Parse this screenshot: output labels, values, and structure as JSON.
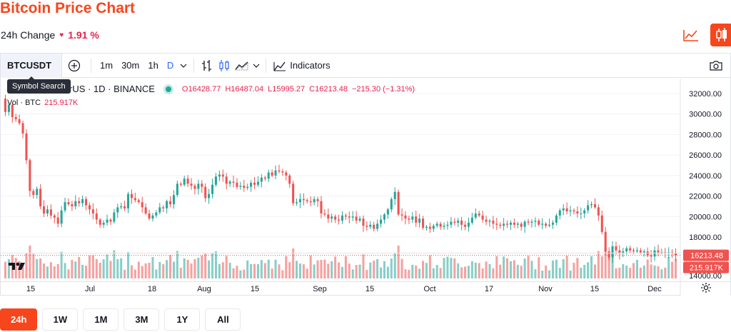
{
  "header": {
    "title": "Bitcoin Price Chart",
    "change_label": "24h Change",
    "change_value": "1.91 %"
  },
  "toolbar": {
    "symbol": "BTCUSDT",
    "intervals": [
      "1m",
      "30m",
      "1h",
      "D"
    ],
    "active_interval": "D",
    "indicators_label": "Indicators",
    "tooltip": "Symbol Search"
  },
  "legend": {
    "symbol_text": "rUS · 1D · BINANCE",
    "open": "O16428.77",
    "high": "H16487.04",
    "low": "L15995.27",
    "close": "C16213.48",
    "change": "−215.30 (−1.31%)",
    "vol_label": "Vol · BTC",
    "vol_value": "215.917K"
  },
  "price_axis": {
    "labels": [
      "32000.00",
      "30000.00",
      "28000.00",
      "26000.00",
      "24000.00",
      "22000.00",
      "20000.00",
      "18000.00",
      "14000.00"
    ],
    "last_price": "16213.48",
    "last_volume": "215.917K"
  },
  "time_axis": {
    "labels": [
      "15",
      "Jul",
      "18",
      "Aug",
      "15",
      "Sep",
      "15",
      "Oct",
      "17",
      "Nov",
      "15",
      "Dec"
    ]
  },
  "timeframes": [
    "24h",
    "1W",
    "1M",
    "3M",
    "1Y",
    "All"
  ],
  "active_timeframe": "24h",
  "colors": {
    "accent": "#f7461c",
    "up": "#26a69a",
    "down": "#ef5350",
    "neg_text": "#e8224f"
  },
  "chart_data": {
    "type": "candlestick",
    "interval": "1D",
    "ylim": [
      14000,
      32500
    ],
    "close": [
      30200,
      30900,
      29700,
      29500,
      29100,
      28100,
      25500,
      22500,
      22100,
      22700,
      21000,
      20300,
      20700,
      20100,
      19900,
      19300,
      20600,
      21400,
      21200,
      21000,
      21500,
      21300,
      21700,
      21100,
      20700,
      20300,
      19700,
      19200,
      19400,
      19700,
      19500,
      20400,
      20900,
      21000,
      20800,
      22200,
      21800,
      21600,
      21400,
      20900,
      20300,
      19800,
      20100,
      20400,
      20900,
      20800,
      21500,
      21200,
      22100,
      23200,
      23100,
      23700,
      23200,
      23000,
      22700,
      23200,
      22900,
      21800,
      22200,
      23100,
      23900,
      24100,
      23900,
      23200,
      23400,
      23300,
      22900,
      23000,
      22800,
      22900,
      23300,
      23100,
      23400,
      23800,
      23700,
      24300,
      24000,
      24500,
      24400,
      24300,
      24000,
      23200,
      21300,
      21400,
      21700,
      21600,
      21500,
      21400,
      21700,
      21500,
      20300,
      20200,
      19800,
      20000,
      19700,
      19600,
      20100,
      20000,
      19900,
      20000,
      19600,
      19800,
      19100,
      19000,
      19200,
      18800,
      19300,
      19700,
      20200,
      20700,
      21700,
      22400,
      20200,
      20100,
      19800,
      19700,
      20000,
      19400,
      19800,
      18900,
      19000,
      18800,
      19100,
      19300,
      19000,
      19100,
      19200,
      19500,
      19400,
      19600,
      19200,
      19000,
      19400,
      19900,
      20300,
      20100,
      19700,
      19500,
      19600,
      19300,
      19200,
      19100,
      19300,
      19200,
      19400,
      19200,
      19300,
      19000,
      19500,
      19400,
      19500,
      19600,
      19200,
      19300,
      19100,
      19200,
      19400,
      20100,
      20600,
      20800,
      20500,
      20600,
      20500,
      20300,
      20300,
      20600,
      21100,
      21200,
      20900,
      20100,
      18500,
      16600,
      16000,
      17100,
      16700,
      16400,
      16600,
      16900,
      16700,
      16600,
      16700,
      16500,
      16600,
      16200,
      16100,
      16700,
      16500,
      16500,
      16400,
      16500,
      16400,
      16200
    ]
  }
}
